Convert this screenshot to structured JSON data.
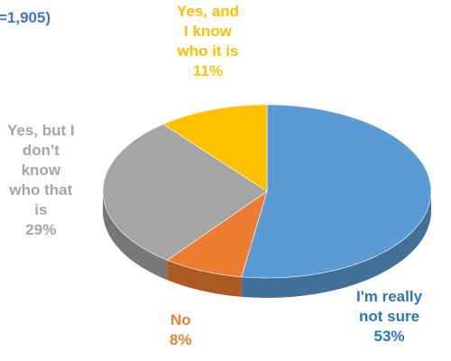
{
  "chart_data": {
    "type": "pie",
    "subtitle": "=1,905)",
    "categories": [
      "I'm really not sure",
      "No",
      "Yes, but I don't know who that is",
      "Yes, and I know who it is"
    ],
    "values": [
      53,
      8,
      29,
      11
    ],
    "value_labels": [
      "53%",
      "8%",
      "29%",
      "11%"
    ],
    "label_lines": [
      [
        "I'm really",
        "not sure"
      ],
      [
        "No"
      ],
      [
        "Yes, but I",
        "don't",
        "know",
        "who that",
        "is"
      ],
      [
        "Yes, and",
        "I know",
        "who it is"
      ]
    ],
    "colors": [
      "#5b9bd5",
      "#ed7d31",
      "#a5a5a5",
      "#ffc000"
    ],
    "label_colors": [
      "#2e75b6",
      "#ed7d31",
      "#a5a5a5",
      "#ffc000"
    ],
    "style": "3d-pie",
    "legend": "none"
  }
}
